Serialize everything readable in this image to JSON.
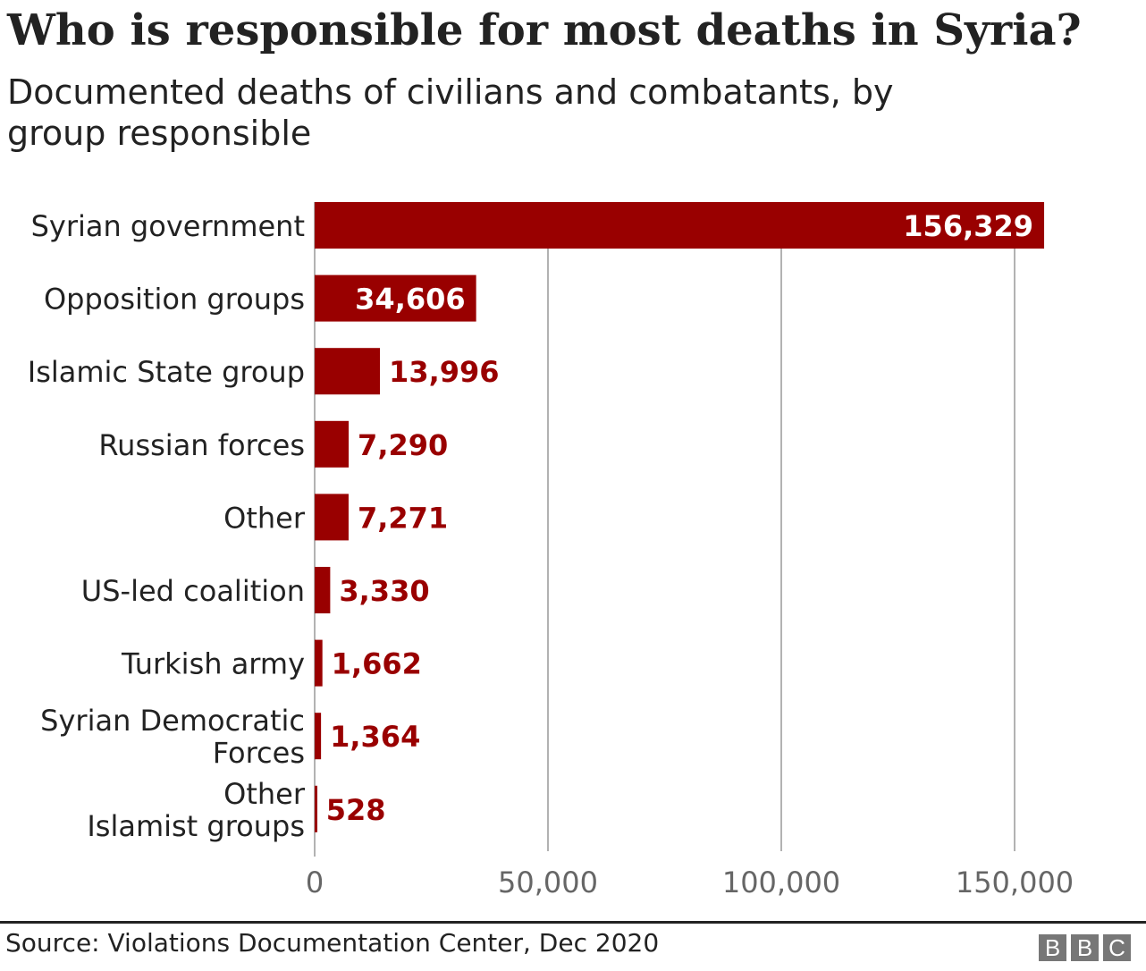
{
  "chart_data": {
    "type": "bar",
    "orientation": "horizontal",
    "title": "Who is responsible for most deaths in Syria?",
    "subtitle": "Documented deaths of civilians and combatants, by group responsible",
    "categories": [
      [
        "Syrian government"
      ],
      [
        "Opposition groups"
      ],
      [
        "Islamic State group"
      ],
      [
        "Russian forces"
      ],
      [
        "Other"
      ],
      [
        "US-led coalition"
      ],
      [
        "Turkish army"
      ],
      [
        "Syrian Democratic",
        "Forces"
      ],
      [
        "Other",
        "Islamist groups"
      ]
    ],
    "values": [
      156329,
      34606,
      13996,
      7290,
      7271,
      3330,
      1662,
      1364,
      528
    ],
    "data_labels": [
      "156,329",
      "34,606",
      "13,996",
      "7,290",
      "7,271",
      "3,330",
      "1,662",
      "1,364",
      "528"
    ],
    "xlim": [
      0,
      160000
    ],
    "xticks": [
      0,
      50000,
      100000,
      150000
    ],
    "xtick_labels": [
      "0",
      "50,000",
      "100,000",
      "150,000"
    ],
    "grid": "vertical",
    "bar_color": "#990000",
    "label_inside_color": "#ffffff"
  },
  "footer": {
    "source": "Source: Violations Documentation Center, Dec 2020",
    "logo": "BBC"
  }
}
